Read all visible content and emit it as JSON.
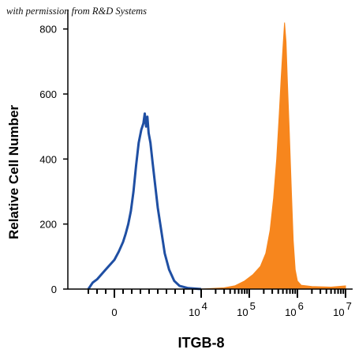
{
  "permission_note": "with permission from R&D Systems",
  "chart_data": {
    "type": "area",
    "title": "",
    "xlabel": "ITGB-8",
    "ylabel": "Relative Cell Number",
    "x_scale": "logicle",
    "xlim": [
      -3000,
      10000000
    ],
    "ylim": [
      0,
      860
    ],
    "y_ticks": [
      0,
      200,
      400,
      600,
      800
    ],
    "x_ticks": [
      {
        "value": 0,
        "base": "0",
        "exp": ""
      },
      {
        "value": 10000,
        "base": "10",
        "exp": "4"
      },
      {
        "value": 100000,
        "base": "10",
        "exp": "5"
      },
      {
        "value": 1000000,
        "base": "10",
        "exp": "6"
      },
      {
        "value": 10000000,
        "base": "10",
        "exp": "7"
      }
    ],
    "grid": false,
    "series": [
      {
        "style": "line",
        "color": "#1f4fa3",
        "points": [
          [
            -3000,
            0
          ],
          [
            -2500,
            20
          ],
          [
            -2000,
            30
          ],
          [
            -1500,
            45
          ],
          [
            -1000,
            60
          ],
          [
            -500,
            75
          ],
          [
            0,
            90
          ],
          [
            500,
            115
          ],
          [
            1000,
            145
          ],
          [
            1300,
            170
          ],
          [
            1600,
            200
          ],
          [
            1900,
            240
          ],
          [
            2200,
            300
          ],
          [
            2500,
            380
          ],
          [
            2800,
            450
          ],
          [
            3100,
            490
          ],
          [
            3350,
            510
          ],
          [
            3500,
            540
          ],
          [
            3650,
            500
          ],
          [
            3800,
            530
          ],
          [
            3950,
            480
          ],
          [
            4150,
            450
          ],
          [
            4400,
            390
          ],
          [
            4700,
            320
          ],
          [
            5000,
            250
          ],
          [
            5400,
            180
          ],
          [
            5800,
            110
          ],
          [
            6300,
            60
          ],
          [
            6900,
            25
          ],
          [
            7500,
            10
          ],
          [
            8500,
            3
          ],
          [
            10000,
            0
          ]
        ]
      },
      {
        "style": "filled",
        "color": "#f7861d",
        "points": [
          [
            10000,
            0
          ],
          [
            30000,
            4
          ],
          [
            50000,
            10
          ],
          [
            80000,
            25
          ],
          [
            120000,
            45
          ],
          [
            170000,
            70
          ],
          [
            220000,
            110
          ],
          [
            270000,
            180
          ],
          [
            320000,
            280
          ],
          [
            370000,
            400
          ],
          [
            420000,
            540
          ],
          [
            460000,
            650
          ],
          [
            500000,
            740
          ],
          [
            540000,
            820
          ],
          [
            580000,
            760
          ],
          [
            620000,
            640
          ],
          [
            680000,
            480
          ],
          [
            750000,
            300
          ],
          [
            820000,
            150
          ],
          [
            900000,
            60
          ],
          [
            1000000,
            25
          ],
          [
            1200000,
            12
          ],
          [
            2000000,
            8
          ],
          [
            5000000,
            6
          ],
          [
            10000000,
            10
          ]
        ]
      }
    ]
  }
}
